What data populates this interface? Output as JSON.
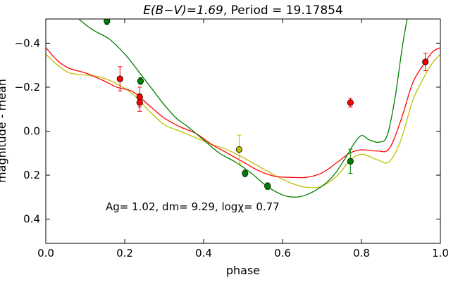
{
  "chart_data": {
    "type": "scatter",
    "title": "E(B−V)=1.69, Period = 19.17854",
    "title_math": "E(B−V)=1.69",
    "title_rest": ", Period = 19.17854",
    "xlabel": "phase",
    "ylabel": "magnitude - mean",
    "xlim": [
      0.0,
      1.0
    ],
    "ylim": [
      0.51,
      -0.51
    ],
    "y_inverted": true,
    "grid": false,
    "x_ticks": [
      0.0,
      0.2,
      0.4,
      0.6,
      0.8,
      1.0
    ],
    "x_tick_labels": [
      "0.0",
      "0.2",
      "0.4",
      "0.6",
      "0.8",
      "1.0"
    ],
    "y_ticks": [
      -0.4,
      -0.2,
      0.0,
      0.2,
      0.4
    ],
    "y_tick_labels": [
      "−0.4",
      "−0.2",
      "0.0",
      "0.2",
      "0.4"
    ],
    "annotation": "Ag= 1.02, dm=  9.29, logχ=  0.77",
    "series": [
      {
        "color": "#008000",
        "kind": "model",
        "curve": [
          [
            0.0,
            -0.65
          ],
          [
            0.05,
            -0.57
          ],
          [
            0.09,
            -0.5
          ],
          [
            0.12,
            -0.46
          ],
          [
            0.16,
            -0.42
          ],
          [
            0.19,
            -0.37
          ],
          [
            0.21,
            -0.33
          ],
          [
            0.24,
            -0.26
          ],
          [
            0.27,
            -0.19
          ],
          [
            0.3,
            -0.12
          ],
          [
            0.33,
            -0.06
          ],
          [
            0.36,
            -0.02
          ],
          [
            0.4,
            0.04
          ],
          [
            0.44,
            0.1
          ],
          [
            0.48,
            0.14
          ],
          [
            0.52,
            0.19
          ],
          [
            0.56,
            0.25
          ],
          [
            0.6,
            0.29
          ],
          [
            0.63,
            0.3
          ],
          [
            0.66,
            0.29
          ],
          [
            0.7,
            0.25
          ],
          [
            0.73,
            0.2
          ],
          [
            0.76,
            0.12
          ],
          [
            0.78,
            0.06
          ],
          [
            0.8,
            0.02
          ],
          [
            0.82,
            0.04
          ],
          [
            0.845,
            0.05
          ],
          [
            0.865,
            0.02
          ],
          [
            0.885,
            -0.15
          ],
          [
            0.905,
            -0.4
          ],
          [
            0.925,
            -0.6
          ]
        ],
        "points": [
          [
            0.155,
            -0.5
          ],
          [
            0.24,
            -0.228
          ],
          [
            0.505,
            0.192
          ],
          [
            0.562,
            0.25
          ],
          [
            0.772,
            0.137
          ]
        ],
        "errors": [
          0.015,
          0.015,
          0.015,
          0.015,
          0.055
        ]
      },
      {
        "color": "#ff0000",
        "kind": "model",
        "curve": [
          [
            0.0,
            -0.38
          ],
          [
            0.03,
            -0.32
          ],
          [
            0.06,
            -0.285
          ],
          [
            0.1,
            -0.265
          ],
          [
            0.14,
            -0.235
          ],
          [
            0.18,
            -0.2
          ],
          [
            0.22,
            -0.18
          ],
          [
            0.26,
            -0.12
          ],
          [
            0.3,
            -0.06
          ],
          [
            0.34,
            -0.02
          ],
          [
            0.38,
            0.01
          ],
          [
            0.42,
            0.06
          ],
          [
            0.46,
            0.1
          ],
          [
            0.5,
            0.14
          ],
          [
            0.54,
            0.18
          ],
          [
            0.58,
            0.205
          ],
          [
            0.62,
            0.21
          ],
          [
            0.66,
            0.21
          ],
          [
            0.7,
            0.19
          ],
          [
            0.74,
            0.14
          ],
          [
            0.77,
            0.1
          ],
          [
            0.8,
            0.085
          ],
          [
            0.84,
            0.09
          ],
          [
            0.87,
            0.08
          ],
          [
            0.9,
            -0.05
          ],
          [
            0.93,
            -0.22
          ],
          [
            0.96,
            -0.31
          ],
          [
            0.98,
            -0.36
          ],
          [
            1.0,
            -0.38
          ]
        ],
        "points": [
          [
            0.188,
            -0.238
          ],
          [
            0.238,
            -0.155
          ],
          [
            0.238,
            -0.13
          ],
          [
            0.772,
            -0.13
          ],
          [
            0.962,
            -0.315
          ]
        ],
        "errors": [
          0.055,
          0.045,
          0.04,
          0.02,
          0.04
        ]
      },
      {
        "color": "#bfbf00",
        "kind": "model",
        "curve": [
          [
            0.0,
            -0.35
          ],
          [
            0.03,
            -0.3
          ],
          [
            0.06,
            -0.265
          ],
          [
            0.1,
            -0.255
          ],
          [
            0.14,
            -0.245
          ],
          [
            0.18,
            -0.215
          ],
          [
            0.22,
            -0.17
          ],
          [
            0.26,
            -0.095
          ],
          [
            0.3,
            -0.03
          ],
          [
            0.34,
            0.0
          ],
          [
            0.38,
            0.03
          ],
          [
            0.42,
            0.06
          ],
          [
            0.46,
            0.085
          ],
          [
            0.5,
            0.12
          ],
          [
            0.54,
            0.16
          ],
          [
            0.58,
            0.2
          ],
          [
            0.62,
            0.235
          ],
          [
            0.66,
            0.255
          ],
          [
            0.7,
            0.25
          ],
          [
            0.74,
            0.2
          ],
          [
            0.77,
            0.135
          ],
          [
            0.8,
            0.105
          ],
          [
            0.84,
            0.13
          ],
          [
            0.87,
            0.14
          ],
          [
            0.9,
            0.04
          ],
          [
            0.93,
            -0.14
          ],
          [
            0.96,
            -0.25
          ],
          [
            0.98,
            -0.31
          ],
          [
            1.0,
            -0.35
          ]
        ],
        "points": [
          [
            0.49,
            0.083
          ]
        ],
        "errors": [
          0.065
        ]
      }
    ]
  }
}
